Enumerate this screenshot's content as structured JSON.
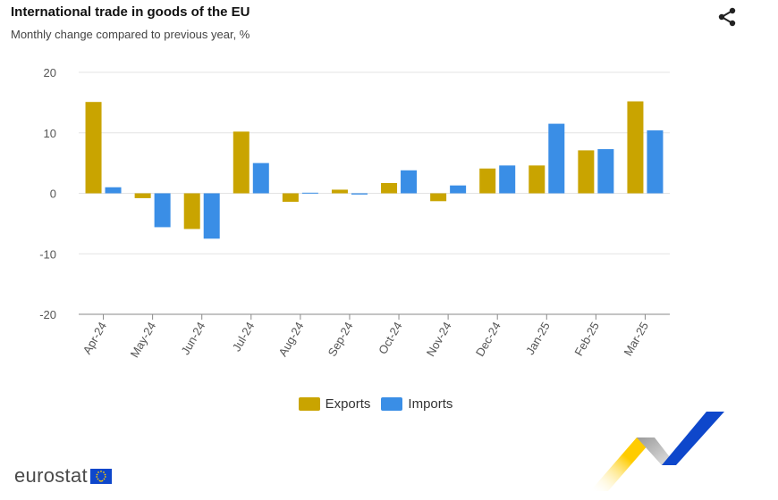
{
  "header": {
    "title": "International trade in goods of the EU",
    "subtitle": "Monthly change compared to previous year, %"
  },
  "footer": {
    "logo_text": "eurostat"
  },
  "icons": {
    "share": "share-icon",
    "flag": "eu-flag-icon"
  },
  "colors": {
    "exports": "#c9a400",
    "imports": "#3a8ee6",
    "eu_blue": "#0e47cb",
    "eu_yellow": "#ffcc00"
  },
  "chart_data": {
    "type": "bar",
    "title": "International trade in goods of the EU",
    "subtitle": "Monthly change compared to previous year, %",
    "categories": [
      "Apr-24",
      "May-24",
      "Jun-24",
      "Jul-24",
      "Aug-24",
      "Sep-24",
      "Oct-24",
      "Nov-24",
      "Dec-24",
      "Jan-25",
      "Feb-25",
      "Mar-25"
    ],
    "series": [
      {
        "name": "Exports",
        "color": "#c9a400",
        "values": [
          15.1,
          -0.8,
          -5.9,
          10.2,
          -1.4,
          0.6,
          1.7,
          -1.3,
          4.1,
          4.6,
          7.1,
          15.2
        ]
      },
      {
        "name": "Imports",
        "color": "#3a8ee6",
        "values": [
          1.0,
          -5.6,
          -7.5,
          5.0,
          0.1,
          -0.2,
          3.8,
          1.3,
          4.6,
          11.5,
          7.3,
          10.4
        ]
      }
    ],
    "yticks": [
      20,
      10,
      0,
      -10,
      -20
    ],
    "ylim": [
      -20,
      20
    ],
    "legend_position": "bottom-center",
    "grid": true
  }
}
